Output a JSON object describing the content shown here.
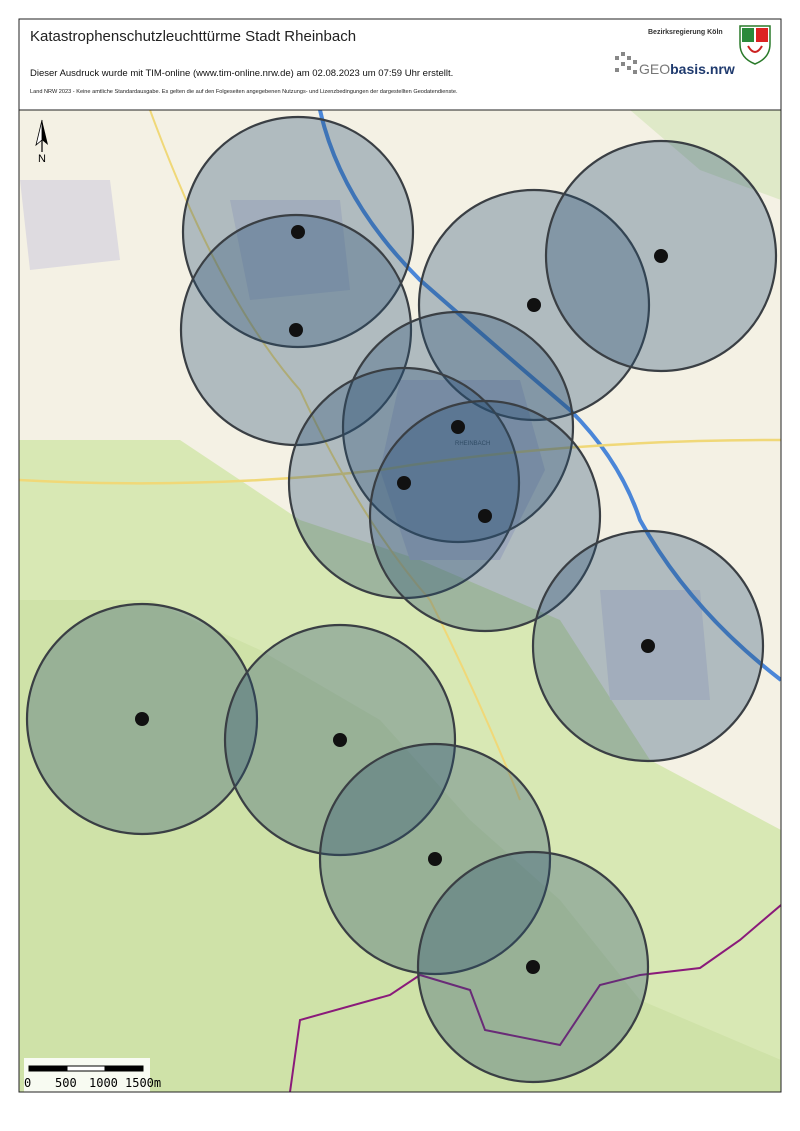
{
  "header": {
    "title": "Katastrophenschutzleuchttürme Stadt Rheinbach",
    "print_note": "Dieser Ausdruck wurde mit TIM-online (www.tim-online.nrw.de) am 02.08.2023 um 07:59 Uhr erstellt.",
    "license_note": "Land NRW 2023 - Keine amtliche Standardausgabe. Es gelten die auf den Folgeseiten angegebenen Nutzungs- und Lizenzbedingungen der dargestellten Geodatendienste.",
    "authority": "Bezirksregierung Köln",
    "logo_prefix": "GEO",
    "logo_suffix": "basis.nrw"
  },
  "map": {
    "north": "N",
    "town_label": "RHEINBACH",
    "scale_labels": [
      "0",
      "500",
      "1000",
      "1500m"
    ]
  }
}
